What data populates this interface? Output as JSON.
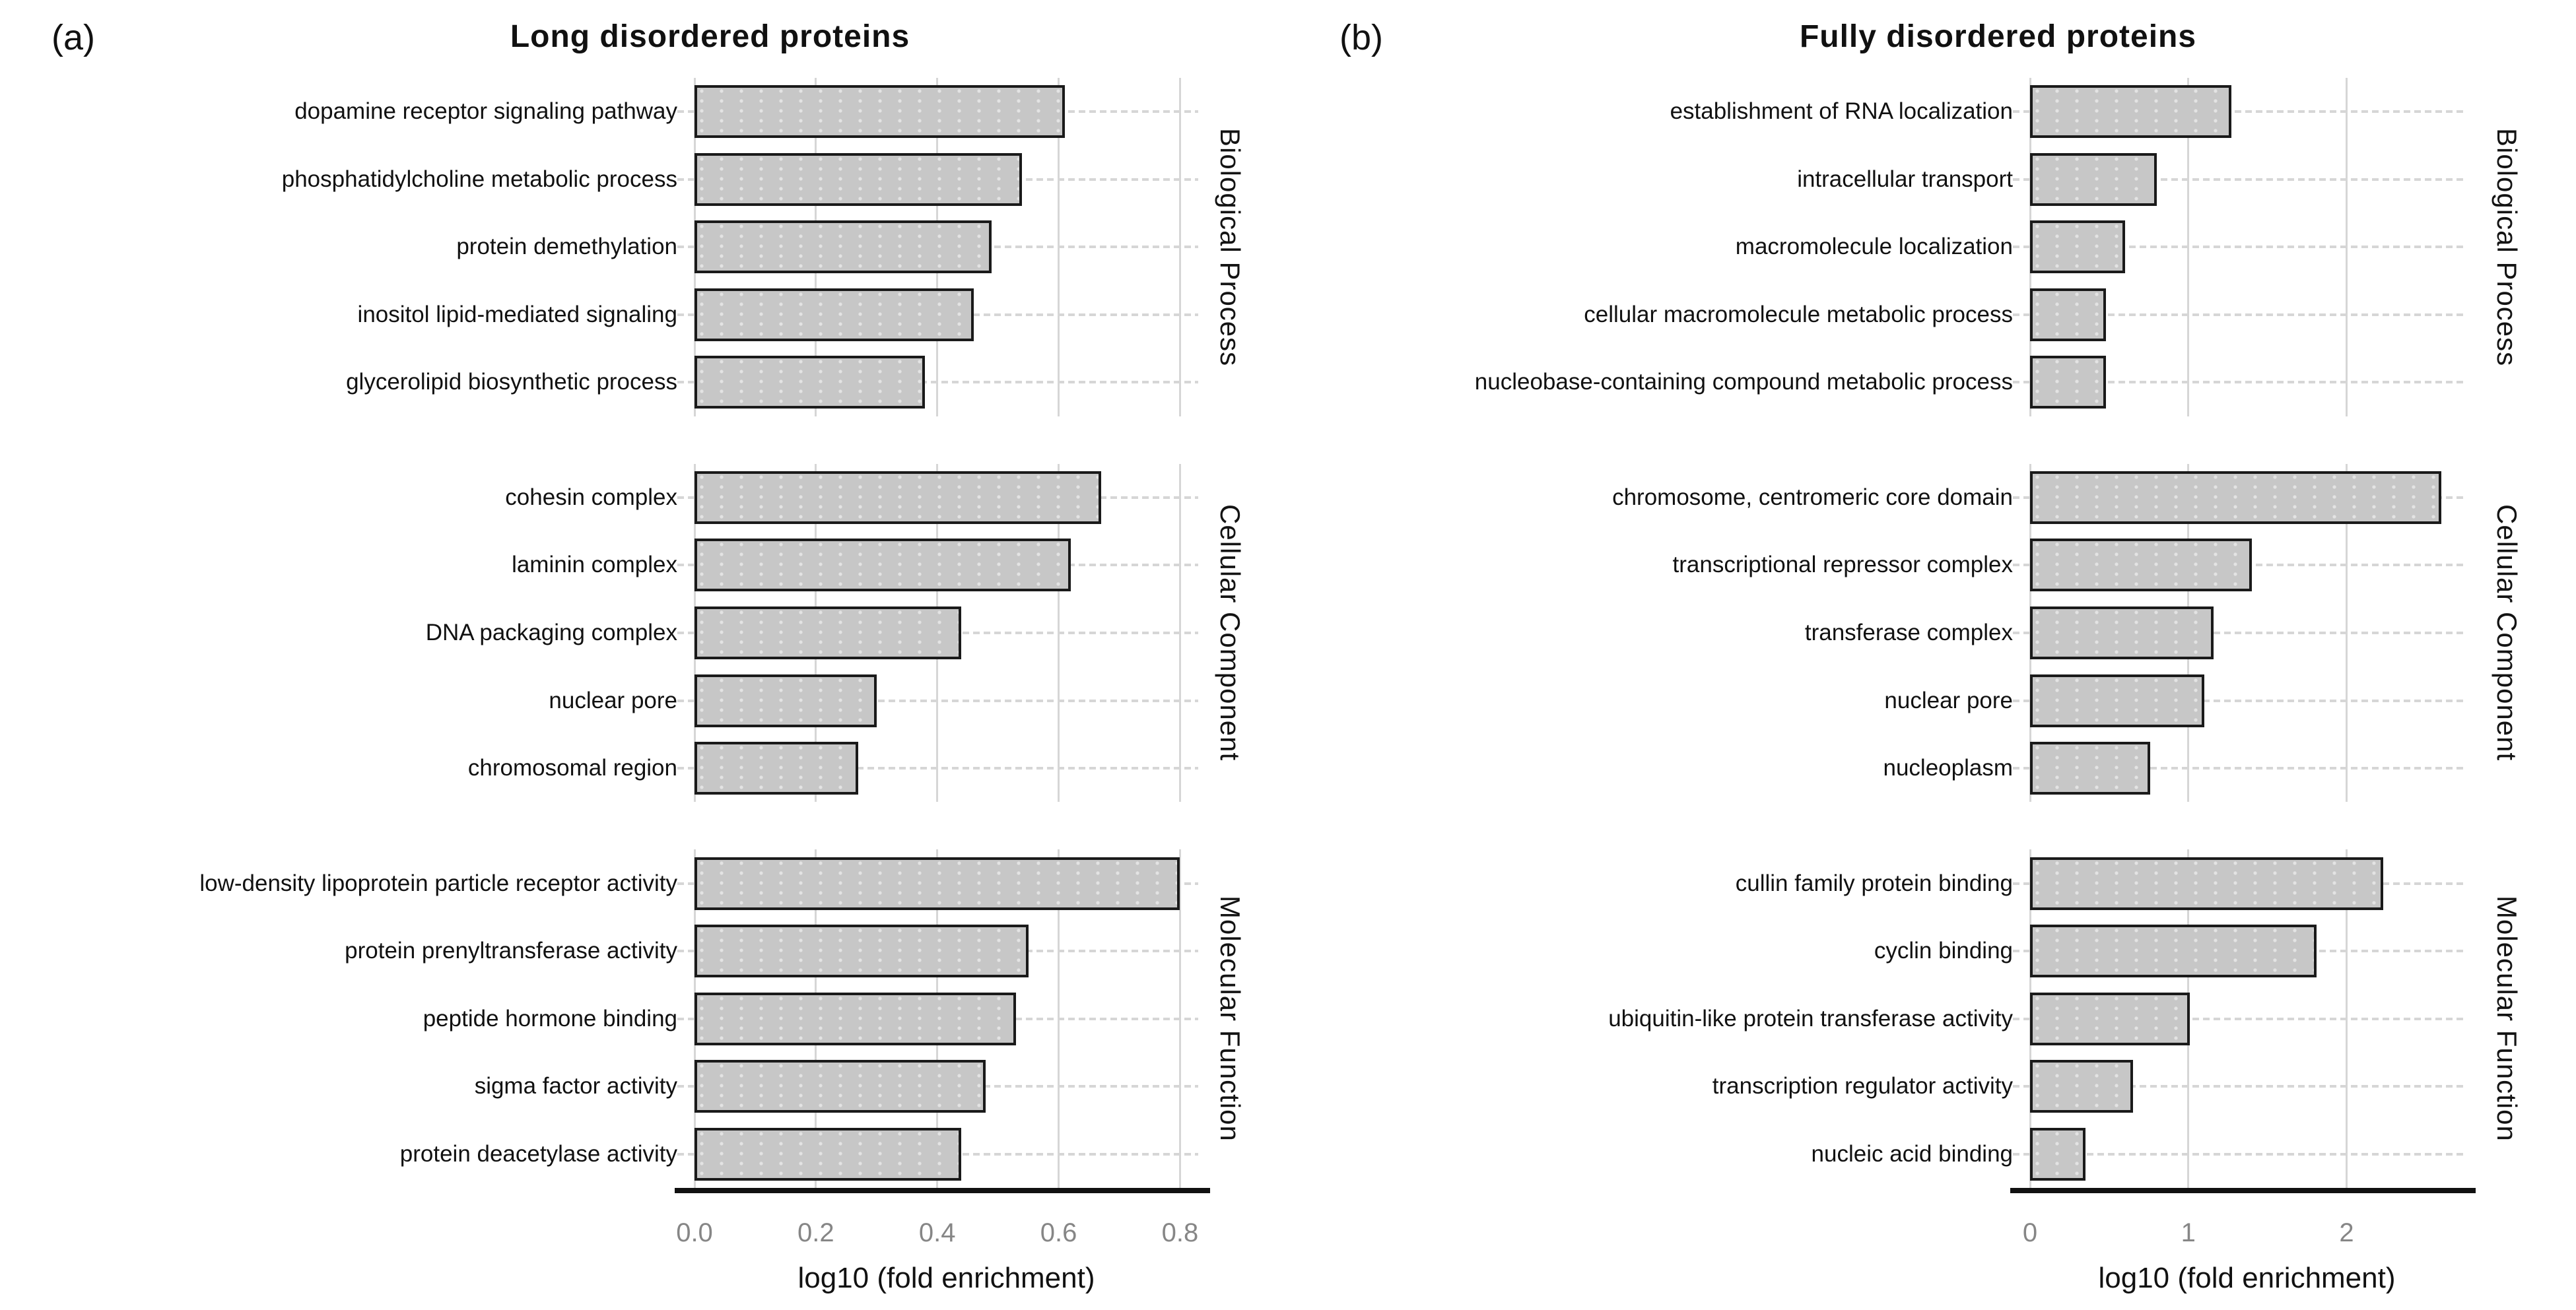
{
  "styles": {
    "bar_fill": "#c7c7c7",
    "bar_border": "#1a1a1a",
    "grid_color": "#d6d6d6",
    "tick_label_color": "#868686",
    "text_color": "#111111",
    "axis_line_color": "#111111"
  },
  "chart_data": [
    {
      "type": "bar",
      "orientation": "horizontal",
      "panel_tag": "(a)",
      "title": "Long disordered proteins",
      "xlabel": "log10 (fold enrichment)",
      "xlim": [
        0,
        0.83
      ],
      "grid": true,
      "legend": "none",
      "x_ticks": [
        {
          "value": 0.0,
          "label": "0.0"
        },
        {
          "value": 0.2,
          "label": "0.2"
        },
        {
          "value": 0.4,
          "label": "0.4"
        },
        {
          "value": 0.6,
          "label": "0.6"
        },
        {
          "value": 0.8,
          "label": "0.8"
        }
      ],
      "facets": [
        {
          "strip": "Biological Process",
          "categories": [
            "dopamine receptor signaling pathway",
            "phosphatidylcholine metabolic process",
            "protein demethylation",
            "inositol lipid-mediated signaling",
            "glycerolipid biosynthetic process"
          ],
          "values": [
            0.61,
            0.54,
            0.49,
            0.46,
            0.38
          ]
        },
        {
          "strip": "Cellular Component",
          "categories": [
            "cohesin complex",
            "laminin complex",
            "DNA packaging complex",
            "nuclear pore",
            "chromosomal region"
          ],
          "values": [
            0.67,
            0.62,
            0.44,
            0.3,
            0.27
          ]
        },
        {
          "strip": "Molecular Function",
          "categories": [
            "low-density lipoprotein particle receptor activity",
            "protein prenyltransferase activity",
            "peptide hormone binding",
            "sigma factor activity",
            "protein deacetylase activity"
          ],
          "values": [
            0.8,
            0.55,
            0.53,
            0.48,
            0.44
          ]
        }
      ]
    },
    {
      "type": "bar",
      "orientation": "horizontal",
      "panel_tag": "(b)",
      "title": "Fully disordered proteins",
      "xlabel": "log10 (fold enrichment)",
      "xlim": [
        0,
        2.74
      ],
      "grid": true,
      "legend": "none",
      "x_ticks": [
        {
          "value": 0,
          "label": "0"
        },
        {
          "value": 1,
          "label": "1"
        },
        {
          "value": 2,
          "label": "2"
        }
      ],
      "facets": [
        {
          "strip": "Biological Process",
          "categories": [
            "establishment of RNA localization",
            "intracellular transport",
            "macromolecule localization",
            "cellular macromolecule metabolic process",
            "nucleobase-containing compound metabolic process"
          ],
          "values": [
            1.27,
            0.8,
            0.6,
            0.48,
            0.48
          ]
        },
        {
          "strip": "Cellular Component",
          "categories": [
            "chromosome, centromeric core domain",
            "transcriptional repressor complex",
            "transferase complex",
            "nuclear pore",
            "nucleoplasm"
          ],
          "values": [
            2.6,
            1.4,
            1.16,
            1.1,
            0.76
          ]
        },
        {
          "strip": "Molecular Function",
          "categories": [
            "cullin family protein binding",
            "cyclin binding",
            "ubiquitin-like protein transferase activity",
            "transcription regulator activity",
            "nucleic acid binding"
          ],
          "values": [
            2.23,
            1.81,
            1.01,
            0.65,
            0.35
          ]
        }
      ]
    }
  ]
}
